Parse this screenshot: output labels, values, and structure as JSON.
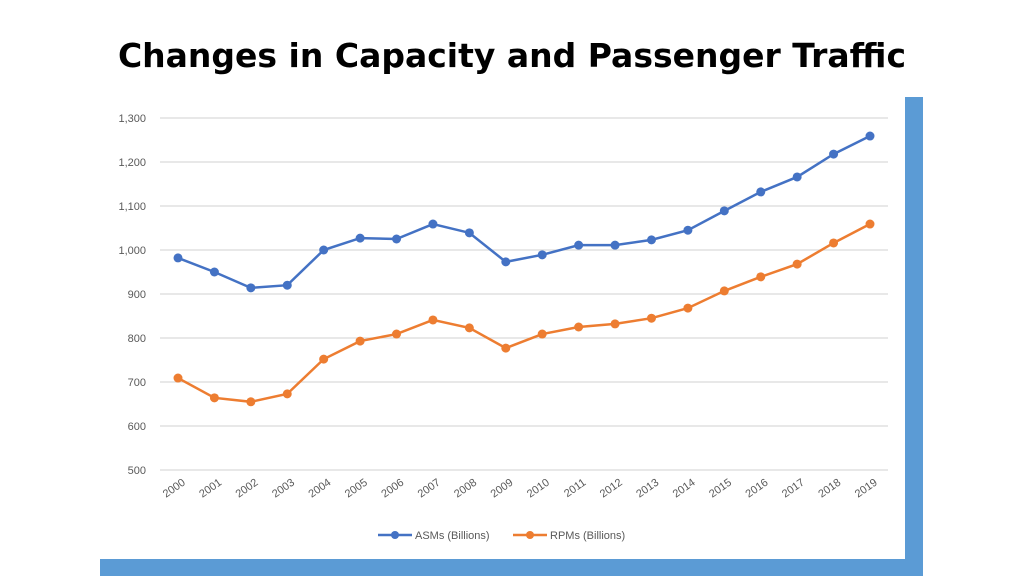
{
  "chart_data": {
    "type": "line",
    "title": "Changes in Capacity and Passenger Traffic",
    "xlabel": "",
    "ylabel": "",
    "categories": [
      "2000",
      "2001",
      "2002",
      "2003",
      "2004",
      "2005",
      "2006",
      "2007",
      "2008",
      "2009",
      "2010",
      "2011",
      "2012",
      "2013",
      "2014",
      "2015",
      "2016",
      "2017",
      "2018",
      "2019"
    ],
    "ylim": [
      500,
      1300
    ],
    "yticks": [
      500,
      600,
      700,
      800,
      900,
      1000,
      1100,
      1200,
      1300
    ],
    "ytick_labels": [
      "500",
      "600",
      "700",
      "800",
      "900",
      "1,000",
      "1,100",
      "1,200",
      "1,300"
    ],
    "grid": true,
    "legend_position": "bottom",
    "series": [
      {
        "name": "ASMs (Billions)",
        "color": "#4472c4",
        "values": [
          982,
          950,
          914,
          920,
          1000,
          1027,
          1025,
          1059,
          1039,
          973,
          989,
          1011,
          1011,
          1023,
          1045,
          1089,
          1132,
          1166,
          1218,
          1259
        ]
      },
      {
        "name": "RPMs (Billions)",
        "color": "#ed7d31",
        "values": [
          709,
          664,
          655,
          673,
          752,
          793,
          809,
          841,
          823,
          777,
          809,
          825,
          832,
          845,
          868,
          907,
          939,
          968,
          1016,
          1059
        ]
      }
    ],
    "frame_color": "#5b9bd5"
  }
}
